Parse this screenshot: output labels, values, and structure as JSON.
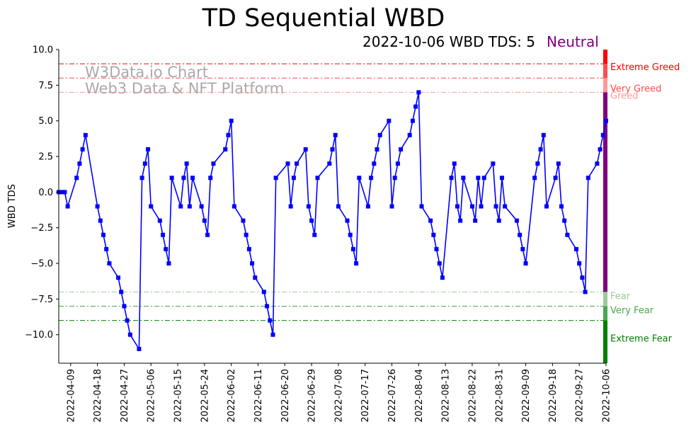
{
  "chart_data": {
    "type": "line",
    "title": "TD Sequential WBD",
    "subtitle": "2022-10-06 WBD TDS: 5",
    "status": "Neutral",
    "ylabel": "WBD TDS",
    "xlabel": "",
    "ylim": [
      -12,
      10
    ],
    "xlim": [
      "2022-04-05",
      "2022-10-06"
    ],
    "y_ticks": [
      "10.0",
      "7.5",
      "5.0",
      "2.5",
      "0.0",
      "−2.5",
      "−5.0",
      "−7.5",
      "−10.0"
    ],
    "y_tick_values": [
      10,
      7.5,
      5,
      2.5,
      0,
      -2.5,
      -5,
      -7.5,
      -10
    ],
    "x_ticks": [
      "2022-04-09",
      "2022-04-18",
      "2022-04-27",
      "2022-05-06",
      "2022-05-15",
      "2022-05-24",
      "2022-06-02",
      "2022-06-11",
      "2022-06-20",
      "2022-06-29",
      "2022-07-08",
      "2022-07-17",
      "2022-07-26",
      "2022-08-04",
      "2022-08-13",
      "2022-08-22",
      "2022-08-31",
      "2022-09-09",
      "2022-09-18",
      "2022-09-27",
      "2022-10-06"
    ],
    "watermark": [
      "W3Data.io Chart",
      "Web3 Data & NFT Platform"
    ],
    "colors": {
      "line": "#0000ff",
      "status": "#800080",
      "extreme_greed": "#ff0000",
      "very_greed": "#ff4c4c",
      "greed": "#ff9999",
      "fear": "#99cc99",
      "very_fear": "#4ca64c",
      "extreme_fear": "#008000",
      "neutral_bar": "#800080"
    },
    "thresholds": [
      {
        "label": "Extreme Greed",
        "value": 9,
        "color": "#ff0000"
      },
      {
        "label": "Very Greed",
        "value": 8,
        "color": "#ff4c4c"
      },
      {
        "label": "Greed",
        "value": 7,
        "color": "#ff9999"
      },
      {
        "label": "Fear",
        "value": -7,
        "color": "#99cc99"
      },
      {
        "label": "Very Fear",
        "value": -8,
        "color": "#4ca64c"
      },
      {
        "label": "Extreme Fear",
        "value": -9,
        "color": "#008000"
      }
    ],
    "series": [
      {
        "x": [
          "2022-04-05",
          "2022-04-06",
          "2022-04-07",
          "2022-04-08",
          "2022-04-11",
          "2022-04-12",
          "2022-04-13",
          "2022-04-14",
          "2022-04-18",
          "2022-04-19",
          "2022-04-20",
          "2022-04-21",
          "2022-04-22",
          "2022-04-25",
          "2022-04-26",
          "2022-04-27",
          "2022-04-28",
          "2022-04-29",
          "2022-05-02",
          "2022-05-03",
          "2022-05-04",
          "2022-05-05",
          "2022-05-06",
          "2022-05-09",
          "2022-05-10",
          "2022-05-11",
          "2022-05-12",
          "2022-05-13",
          "2022-05-16",
          "2022-05-17",
          "2022-05-18",
          "2022-05-19",
          "2022-05-20",
          "2022-05-23",
          "2022-05-24",
          "2022-05-25",
          "2022-05-26",
          "2022-05-27",
          "2022-05-31",
          "2022-06-01",
          "2022-06-02",
          "2022-06-03",
          "2022-06-06",
          "2022-06-07",
          "2022-06-08",
          "2022-06-09",
          "2022-06-10",
          "2022-06-13",
          "2022-06-14",
          "2022-06-15",
          "2022-06-16",
          "2022-06-17",
          "2022-06-21",
          "2022-06-22",
          "2022-06-23",
          "2022-06-24",
          "2022-06-27",
          "2022-06-28",
          "2022-06-29",
          "2022-06-30",
          "2022-07-01",
          "2022-07-05",
          "2022-07-06",
          "2022-07-07",
          "2022-07-08",
          "2022-07-11",
          "2022-07-12",
          "2022-07-13",
          "2022-07-14",
          "2022-07-15",
          "2022-07-18",
          "2022-07-19",
          "2022-07-20",
          "2022-07-21",
          "2022-07-22",
          "2022-07-25",
          "2022-07-26",
          "2022-07-27",
          "2022-07-28",
          "2022-07-29",
          "2022-08-01",
          "2022-08-02",
          "2022-08-03",
          "2022-08-04",
          "2022-08-05",
          "2022-08-08",
          "2022-08-09",
          "2022-08-10",
          "2022-08-11",
          "2022-08-12",
          "2022-08-15",
          "2022-08-16",
          "2022-08-17",
          "2022-08-18",
          "2022-08-19",
          "2022-08-22",
          "2022-08-23",
          "2022-08-24",
          "2022-08-25",
          "2022-08-26",
          "2022-08-29",
          "2022-08-30",
          "2022-08-31",
          "2022-09-01",
          "2022-09-02",
          "2022-09-06",
          "2022-09-07",
          "2022-09-08",
          "2022-09-09",
          "2022-09-12",
          "2022-09-13",
          "2022-09-14",
          "2022-09-15",
          "2022-09-16",
          "2022-09-19",
          "2022-09-20",
          "2022-09-21",
          "2022-09-22",
          "2022-09-23",
          "2022-09-26",
          "2022-09-27",
          "2022-09-28",
          "2022-09-29",
          "2022-09-30",
          "2022-10-03",
          "2022-10-04",
          "2022-10-05",
          "2022-10-06"
        ],
        "values": [
          0,
          0,
          0,
          -1,
          1,
          2,
          3,
          4,
          -1,
          -2,
          -3,
          -4,
          -5,
          -6,
          -7,
          -8,
          -9,
          -10,
          -11,
          1,
          2,
          3,
          -1,
          -2,
          -3,
          -4,
          -5,
          1,
          -1,
          1,
          2,
          -1,
          1,
          -1,
          -2,
          -3,
          1,
          2,
          3,
          4,
          5,
          -1,
          -2,
          -3,
          -4,
          -5,
          -6,
          -7,
          -8,
          -9,
          -10,
          1,
          2,
          -1,
          1,
          2,
          3,
          -1,
          -2,
          -3,
          1,
          2,
          3,
          4,
          -1,
          -2,
          -3,
          -4,
          -5,
          1,
          -1,
          1,
          2,
          3,
          4,
          5,
          -1,
          1,
          2,
          3,
          4,
          5,
          6,
          7,
          -1,
          -2,
          -3,
          -4,
          -5,
          -6,
          1,
          2,
          -1,
          -2,
          1,
          -1,
          -2,
          1,
          -1,
          1,
          2,
          -1,
          -2,
          1,
          -1,
          -2,
          -3,
          -4,
          -5,
          1,
          2,
          3,
          4,
          -1,
          1,
          2,
          -1,
          -2,
          -3,
          -4,
          -5,
          -6,
          -7,
          1,
          2,
          3,
          4,
          5
        ]
      }
    ]
  }
}
